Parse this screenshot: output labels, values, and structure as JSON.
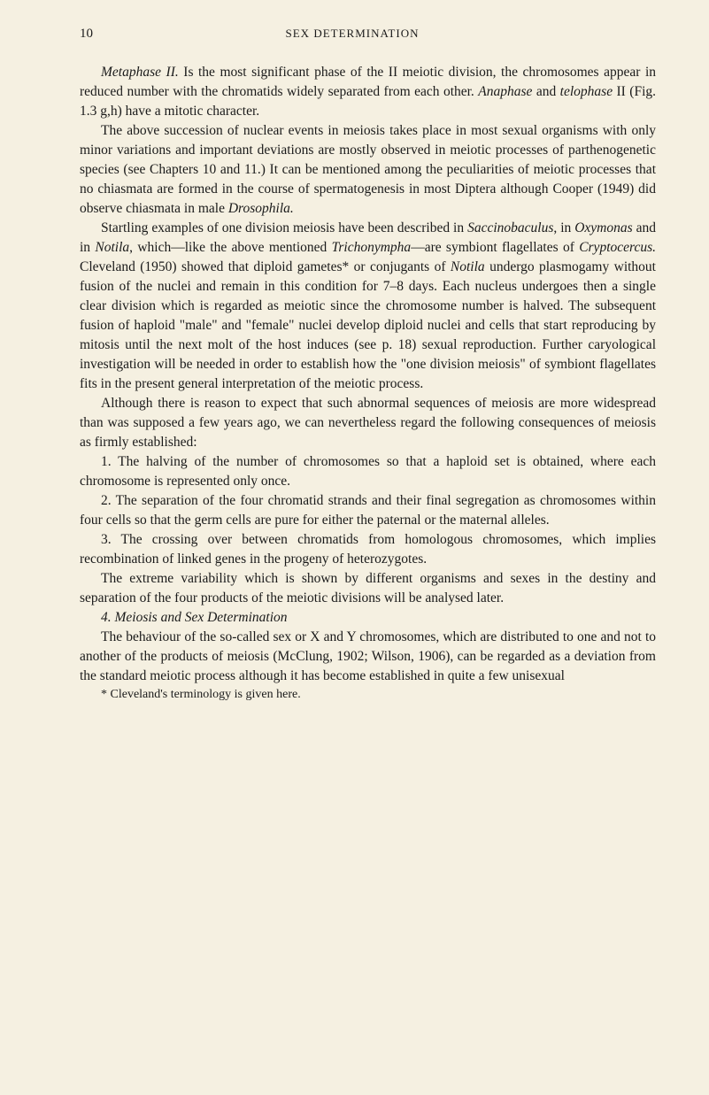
{
  "page_number": "10",
  "chapter_title": "SEX DETERMINATION",
  "para1": "Metaphase II. Is the most significant phase of the II meiotic division, the chromosomes appear in reduced number with the chromatids widely separated from each other. Anaphase and telophase II (Fig. 1.3 g,h) have a mitotic character.",
  "para2": "The above succession of nuclear events in meiosis takes place in most sexual organisms with only minor variations and important deviations are mostly observed in meiotic processes of parthenogenetic species (see Chapters 10 and 11.) It can be mentioned among the peculiarities of meiotic processes that no chiasmata are formed in the course of spermatogenesis in most Diptera although Cooper (1949) did observe chiasmata in male Drosophila.",
  "para3": "Startling examples of one division meiosis have been described in Saccinobaculus, in Oxymonas and in Notila, which—like the above mentioned Trichonympha—are symbiont flagellates of Cryptocercus. Cleveland (1950) showed that diploid gametes* or conjugants of Notila undergo plasmogamy without fusion of the nuclei and remain in this condition for 7–8 days. Each nucleus undergoes then a single clear division which is regarded as meiotic since the chromosome number is halved. The subsequent fusion of haploid \"male\" and \"female\" nuclei develop diploid nuclei and cells that start reproducing by mitosis until the next molt of the host induces (see p. 18) sexual reproduction. Further caryological investigation will be needed in order to establish how the \"one division meiosis\" of symbiont flagellates fits in the present general interpretation of the meiotic process.",
  "para4": "Although there is reason to expect that such abnormal sequences of meiosis are more widespread than was supposed a few years ago, we can nevertheless regard the following consequences of meiosis as firmly established:",
  "list1": "1. The halving of the number of chromosomes so that a haploid set is obtained, where each chromosome is represented only once.",
  "list2": "2. The separation of the four chromatid strands and their final segregation as chromosomes within four cells so that the germ cells are pure for either the paternal or the maternal alleles.",
  "list3": "3. The crossing over between chromatids from homologous chromosomes, which implies recombination of linked genes in the progeny of heterozygotes.",
  "para5": "The extreme variability which is shown by different organisms and sexes in the destiny and separation of the four products of the meiotic divisions will be analysed later.",
  "section_heading": "4. Meiosis and Sex Determination",
  "para6": "The behaviour of the so-called sex or X and Y chromosomes, which are distributed to one and not to another of the products of meiosis (McClung, 1902; Wilson, 1906), can be regarded as a deviation from the standard meiotic process although it has become established in quite a few unisexual",
  "footnote": "* Cleveland's terminology is given here.",
  "colors": {
    "background": "#f5f0e1",
    "text": "#1a1a1a"
  },
  "typography": {
    "body_fontsize": 15.5,
    "line_height": 1.42,
    "header_fontsize": 13,
    "pagenum_fontsize": 15,
    "footnote_fontsize": 14,
    "font_family": "Georgia, Times New Roman, serif"
  }
}
